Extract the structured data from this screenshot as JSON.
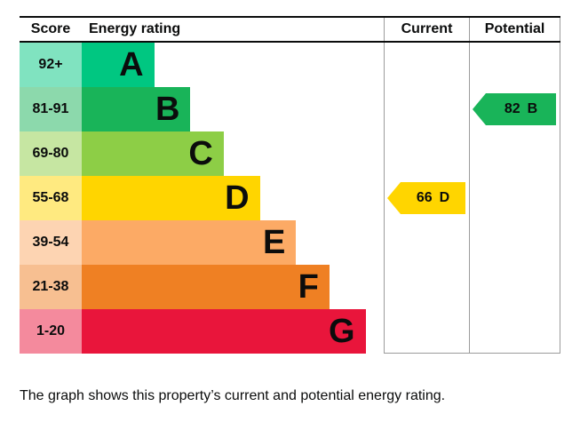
{
  "header": {
    "score": "Score",
    "energy_rating": "Energy rating",
    "current": "Current",
    "potential": "Potential"
  },
  "chart_data": {
    "type": "bar",
    "title": "Energy efficiency rating chart",
    "categories": [
      "A",
      "B",
      "C",
      "D",
      "E",
      "F",
      "G"
    ],
    "score_ranges": [
      "92+",
      "81-91",
      "69-80",
      "55-68",
      "39-54",
      "21-38",
      "1-20"
    ],
    "bar_width_pct": [
      24,
      36,
      47,
      59,
      71,
      82,
      94
    ],
    "current_rating": 66,
    "current_band": "D",
    "potential_rating": 82,
    "potential_band": "B"
  },
  "bands": [
    {
      "score": "92+",
      "letter": "A",
      "color": "#00c781",
      "tint": "#80e3c0",
      "width_pct": 24
    },
    {
      "score": "81-91",
      "letter": "B",
      "color": "#19b459",
      "tint": "#8cd9ac",
      "width_pct": 36
    },
    {
      "score": "69-80",
      "letter": "C",
      "color": "#8dce46",
      "tint": "#c6e6a2",
      "width_pct": 47
    },
    {
      "score": "55-68",
      "letter": "D",
      "color": "#ffd500",
      "tint": "#ffea80",
      "width_pct": 59
    },
    {
      "score": "39-54",
      "letter": "E",
      "color": "#fcaa65",
      "tint": "#fdd4b2",
      "width_pct": 71
    },
    {
      "score": "21-38",
      "letter": "F",
      "color": "#ef8023",
      "tint": "#f7bf91",
      "width_pct": 82
    },
    {
      "score": "1-20",
      "letter": "G",
      "color": "#e9153b",
      "tint": "#f48a9d",
      "width_pct": 94
    }
  ],
  "markers": {
    "current": {
      "value": "66",
      "letter": "D",
      "band_index": 3,
      "color": "#ffd500"
    },
    "potential": {
      "value": "82",
      "letter": "B",
      "band_index": 1,
      "color": "#19b459"
    }
  },
  "caption": "The graph shows this property’s current and potential energy rating."
}
